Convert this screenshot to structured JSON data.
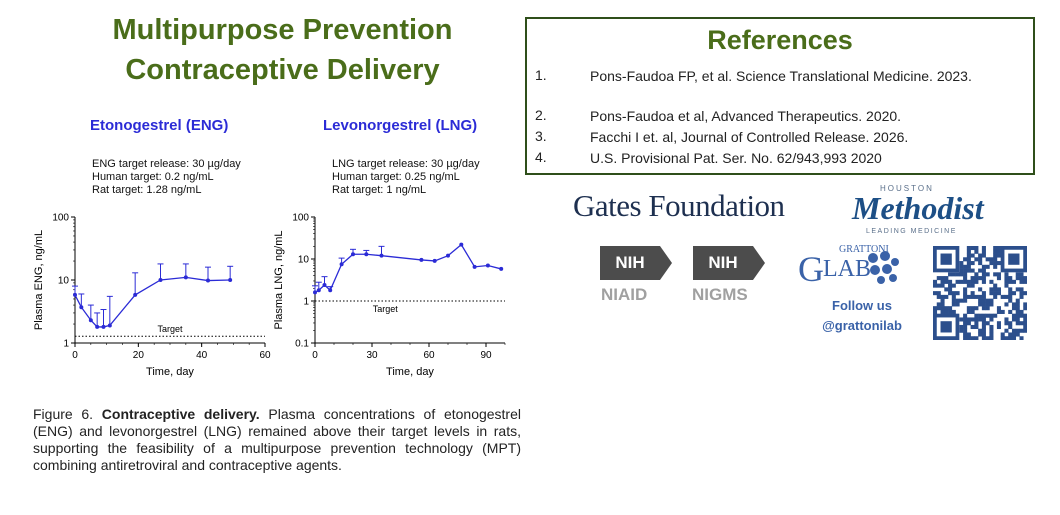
{
  "title": {
    "line1": "Multipurpose Prevention",
    "line2": "Contraceptive Delivery"
  },
  "charts_text": [
    {
      "title": "Etonogestrel (ENG)",
      "targets": [
        "ENG target release: 30 µg/day",
        "Human target: 0.2 ng/mL",
        "Rat target: 1.28 ng/mL"
      ]
    },
    {
      "title": "Levonorgestrel (LNG)",
      "targets": [
        "LNG target release: 30 µg/day",
        "Human target: 0.25 ng/mL",
        "Rat target: 1 ng/mL"
      ]
    }
  ],
  "chart_data": [
    {
      "type": "line",
      "title": "Etonogestrel (ENG)",
      "xlabel": "Time, day",
      "ylabel": "Plasma ENG, ng/mL",
      "yscale": "log",
      "xlim": [
        0,
        60
      ],
      "ylim": [
        1,
        100
      ],
      "xticks": [
        "0",
        "20",
        "40",
        "60"
      ],
      "yticks": [
        "1",
        "10",
        "100"
      ],
      "target_label": "Target",
      "target_value": 1.28,
      "series": [
        {
          "color": "#2b2bd6",
          "x": [
            0,
            2,
            5,
            7,
            9,
            11,
            19,
            27,
            35,
            42,
            49
          ],
          "y": [
            5.8,
            3.7,
            2.3,
            1.8,
            1.8,
            1.9,
            5.8,
            10,
            11,
            9.8,
            10
          ],
          "err_up": [
            8,
            6,
            4,
            3,
            3.4,
            5.5,
            13,
            18,
            18,
            16,
            16.5
          ]
        }
      ]
    },
    {
      "type": "line",
      "title": "Levonorgestrel (LNG)",
      "xlabel": "Time, day",
      "ylabel": "Plasma LNG, ng/mL",
      "yscale": "log",
      "xlim": [
        0,
        100
      ],
      "ylim": [
        0.1,
        100
      ],
      "xticks": [
        "0",
        "30",
        "60",
        "90"
      ],
      "yticks": [
        "0.1",
        "1",
        "10",
        "100"
      ],
      "target_label": "Target",
      "target_value": 1,
      "series": [
        {
          "color": "#2b2bd6",
          "x": [
            0,
            2,
            5,
            8,
            14,
            20,
            27,
            35,
            56,
            63,
            70,
            77,
            84,
            91,
            98
          ],
          "y": [
            1.6,
            1.8,
            2.4,
            1.8,
            7.5,
            13,
            13,
            12,
            9.5,
            9,
            12,
            22,
            6.5,
            7,
            5.8
          ],
          "err_up": [
            2.3,
            2.8,
            3.8,
            2.2,
            10.5,
            17,
            16,
            20,
            9.5,
            9,
            12,
            22,
            6.5,
            7,
            5.8
          ]
        }
      ]
    }
  ],
  "caption": {
    "prefix": "Figure 6. ",
    "bold": "Contraceptive delivery.",
    "text": " Plasma concentrations of etonogestrel (ENG) and levonorgestrel (LNG) remained above their target levels in rats, supporting the feasibility of a multipurpose prevention technology (MPT) combining antiretroviral and contraceptive agents."
  },
  "references": {
    "heading": "References",
    "items": [
      {
        "num": "1.",
        "text": "Pons-Faudoa FP, et al. Science Translational Medicine. 2023."
      },
      {
        "num": "2.",
        "text": "Pons-Faudoa et al, Advanced Therapeutics. 2020."
      },
      {
        "num": "3.",
        "text": "Facchi I et. al, Journal of Controlled Release. 2026."
      },
      {
        "num": "4.",
        "text": "U.S. Provisional Pat. Ser. No. 62/943,993  2020"
      }
    ]
  },
  "logos": {
    "gates": "Gates Foundation",
    "methodist_top": "HOUSTON",
    "methodist_name": "Methodist",
    "methodist_sub": "LEADING MEDICINE",
    "nih1_mark": "NIH",
    "nih1_sub": "NIAID",
    "nih2_mark": "NIH",
    "nih2_sub": "NIGMS",
    "grattoni_small": "GRATTONI",
    "grattoni_g": "G",
    "grattoni_lab": "LAB",
    "follow": "Follow us",
    "handle": "@grattonilab"
  },
  "colors": {
    "title_green": "#4a6d1a",
    "chart_blue": "#2b2bd6",
    "grattoni_blue": "#3a62a8"
  }
}
